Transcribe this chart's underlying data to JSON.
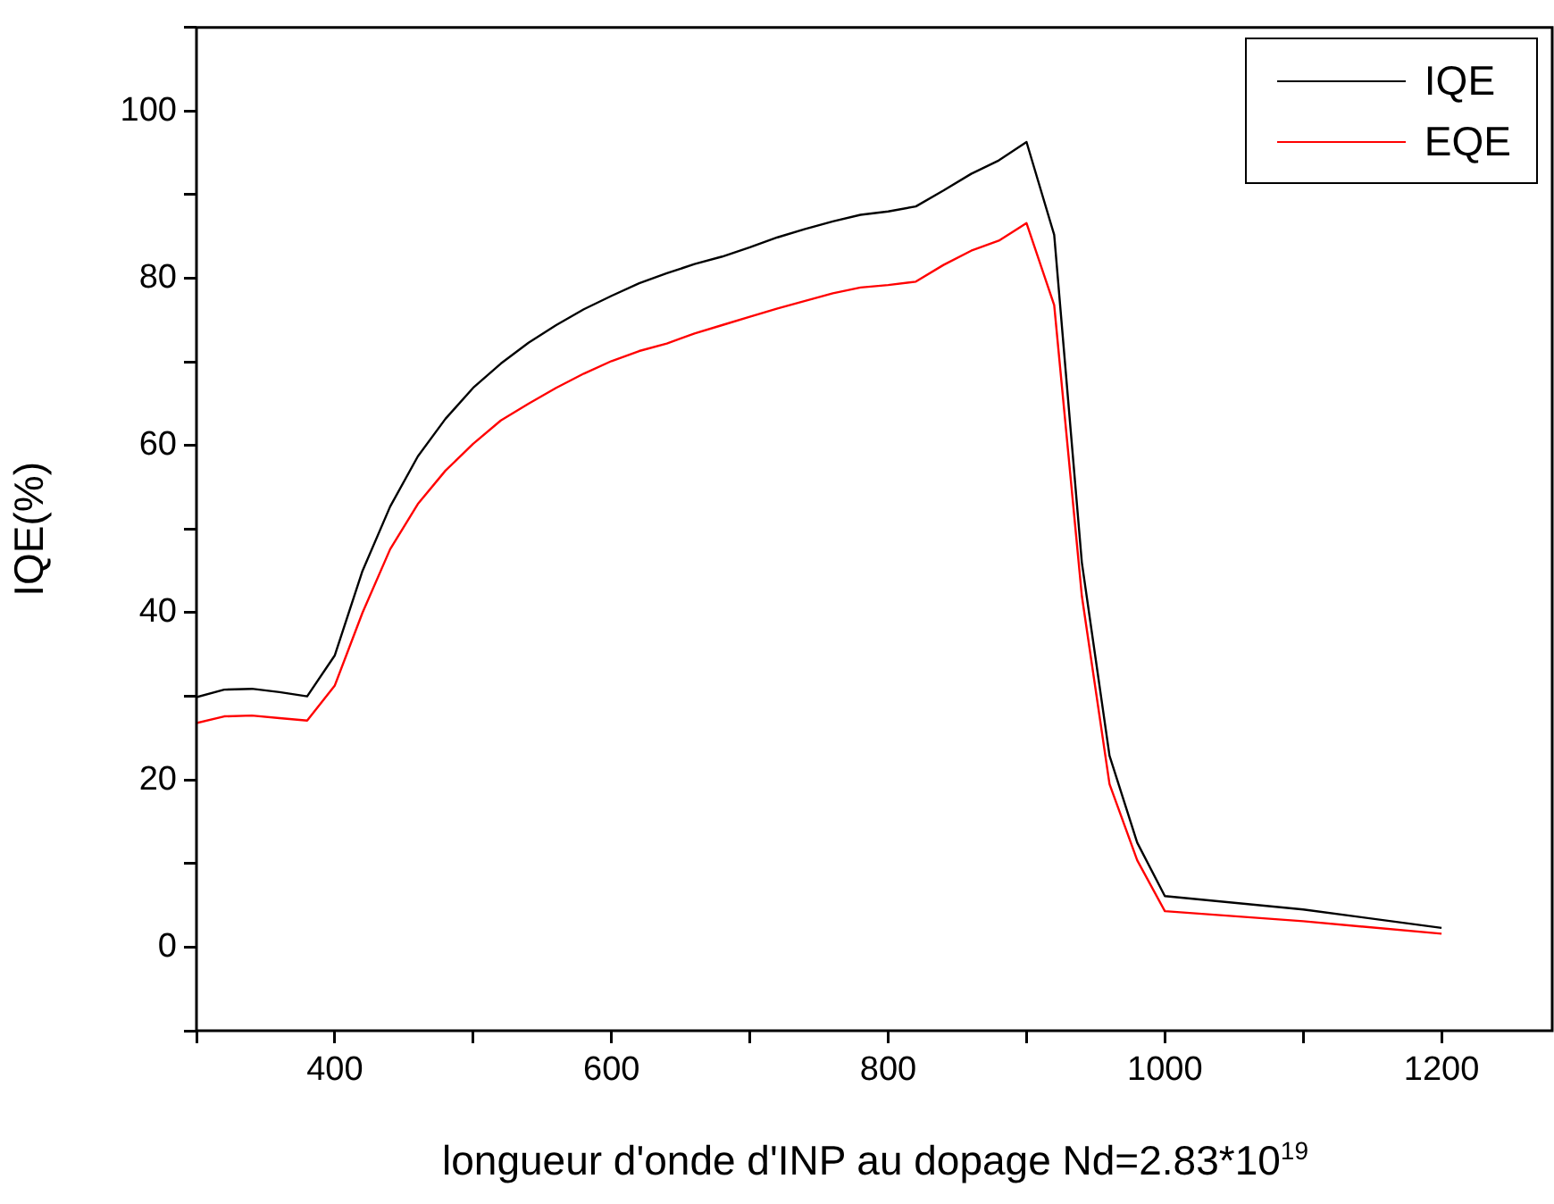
{
  "chart_data": {
    "type": "line",
    "xlabel": "longueur d'onde d'INP au dopage Nd=2.83*10$^{19}$",
    "ylabel": "IQE(%)",
    "x": [
      300,
      320,
      340,
      360,
      380,
      400,
      420,
      440,
      460,
      480,
      500,
      520,
      540,
      560,
      580,
      600,
      620,
      640,
      660,
      680,
      700,
      720,
      740,
      760,
      780,
      800,
      820,
      840,
      860,
      880,
      900,
      920,
      940,
      960,
      980,
      1000,
      1100,
      1200
    ],
    "series": [
      {
        "name": "IQE",
        "color": "#000000",
        "values": [
          29.9,
          30.8,
          30.9,
          30.5,
          30.0,
          34.9,
          45.0,
          52.7,
          58.7,
          63.2,
          66.9,
          69.8,
          72.3,
          74.4,
          76.3,
          77.9,
          79.4,
          80.6,
          81.7,
          82.6,
          83.7,
          84.9,
          85.9,
          86.8,
          87.6,
          88.0,
          88.6,
          90.5,
          92.5,
          94.1,
          96.3,
          85.2,
          46,
          22.9,
          12.5,
          6.1,
          4.5,
          2.3
        ]
      },
      {
        "name": "EQE",
        "color": "#ff0000",
        "values": [
          26.8,
          27.6,
          27.7,
          27.4,
          27.1,
          31.3,
          40.0,
          47.6,
          53.0,
          57.0,
          60.2,
          63.0,
          65.0,
          66.9,
          68.6,
          70.1,
          71.3,
          72.2,
          73.4,
          74.4,
          75.4,
          76.4,
          77.3,
          78.2,
          78.9,
          79.2,
          79.6,
          81.6,
          83.3,
          84.5,
          86.6,
          76.8,
          42,
          19.5,
          10.4,
          4.3,
          3.1,
          1.6
        ]
      }
    ],
    "xlim": [
      300,
      1280
    ],
    "xticks": [
      {
        "value": 300,
        "label": null
      },
      400,
      {
        "value": 500,
        "label": null
      },
      600,
      {
        "value": 700,
        "label": null
      },
      800,
      {
        "value": 900,
        "label": null
      },
      1000,
      {
        "value": 1100,
        "label": null
      },
      1200
    ],
    "ylim": [
      -10,
      110
    ],
    "yticks": [
      {
        "value": -10,
        "label": null
      },
      0,
      {
        "value": 10,
        "label": null
      },
      20,
      {
        "value": 30,
        "label": null
      },
      40,
      {
        "value": 50,
        "label": null
      },
      60,
      {
        "value": 70,
        "label": null
      },
      80,
      {
        "value": 90,
        "label": null
      },
      100,
      {
        "value": 110,
        "label": null
      }
    ],
    "grid": false,
    "legend": "top right",
    "marker": "none",
    "line_style": "solid"
  }
}
